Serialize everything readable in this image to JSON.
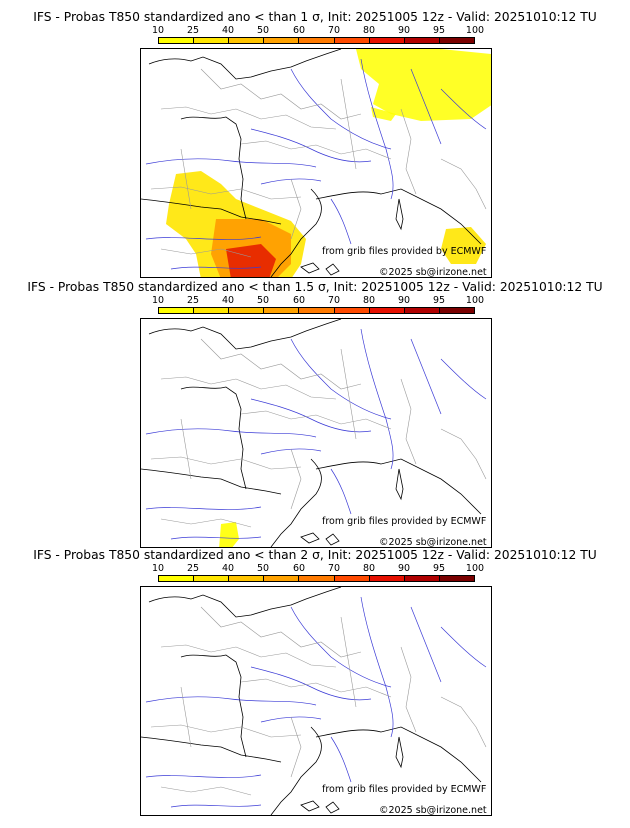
{
  "colorbar": {
    "ticks": [
      "10",
      "25",
      "40",
      "50",
      "60",
      "70",
      "80",
      "90",
      "95",
      "100"
    ],
    "colors": [
      "#ffff00",
      "#ffe600",
      "#ffc400",
      "#ffa200",
      "#ff7a00",
      "#ff4a00",
      "#e61000",
      "#b00000",
      "#7a0000"
    ]
  },
  "credits": {
    "source": "from grib files provided by ECMWF",
    "copyright": "©2025 sb@irizone.net"
  },
  "panels": [
    {
      "title": "IFS - Probas T850  standardized ano < than 1 σ, Init: 20251005 12z - Valid: 20251010:12 TU"
    },
    {
      "title": "IFS - Probas T850  standardized ano < than 1.5 σ, Init: 20251005 12z - Valid: 20251010:12 TU"
    },
    {
      "title": "IFS - Probas T850  standardized ano < than 2 σ, Init: 20251005 12z - Valid: 20251010:12 TU"
    }
  ]
}
